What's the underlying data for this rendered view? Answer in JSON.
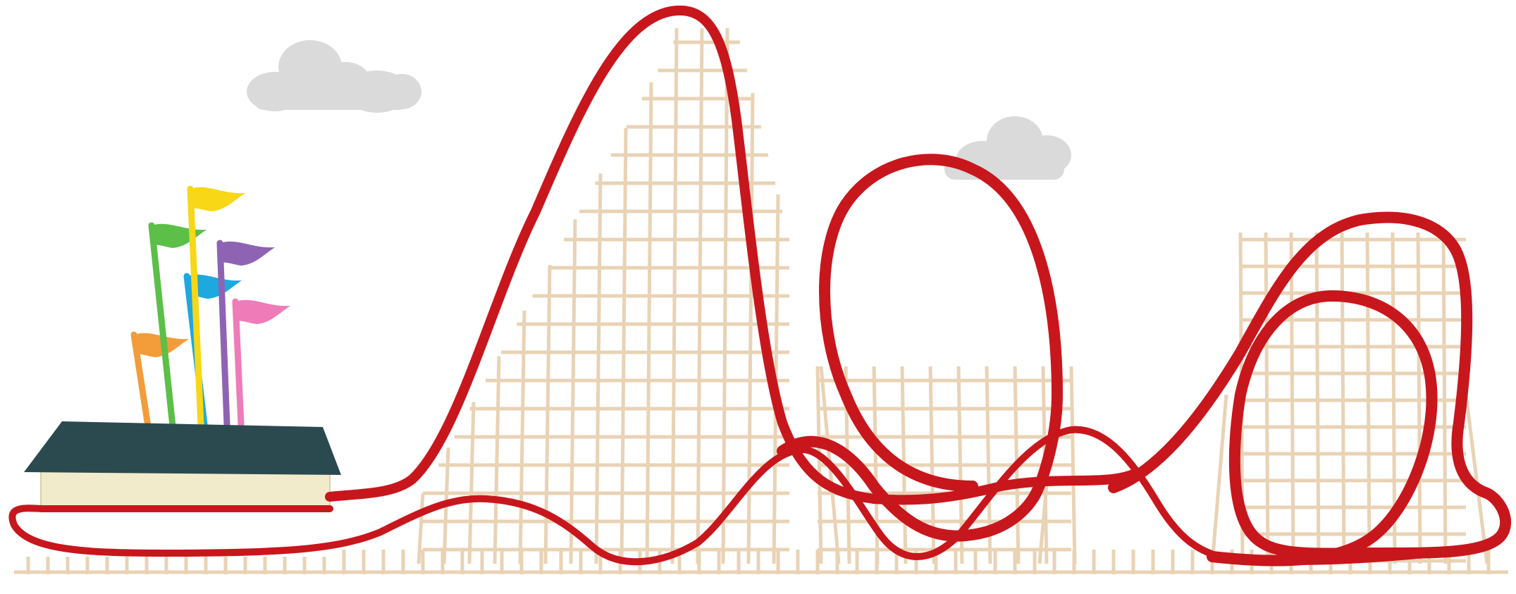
{
  "scene": {
    "subject": "roller-coaster-illustration",
    "colors": {
      "background": "#ffffff",
      "track": "#c8161d",
      "scaffold": "#e9d3b5",
      "scaffold_dark": "#d9bf99",
      "cloud": "#dadada",
      "station_roof": "#2b4a50",
      "station_wall": "#f1ebcc",
      "station_edge": "#d8d0a8"
    },
    "flags": [
      {
        "name": "flag-orange",
        "color": "#f39c3a"
      },
      {
        "name": "flag-green",
        "color": "#5cbf48"
      },
      {
        "name": "flag-cyan",
        "color": "#1ea8e0"
      },
      {
        "name": "flag-yellow",
        "color": "#f7d716"
      },
      {
        "name": "flag-purple",
        "color": "#8e63b4"
      },
      {
        "name": "flag-pink",
        "color": "#ef7cb9"
      }
    ]
  }
}
